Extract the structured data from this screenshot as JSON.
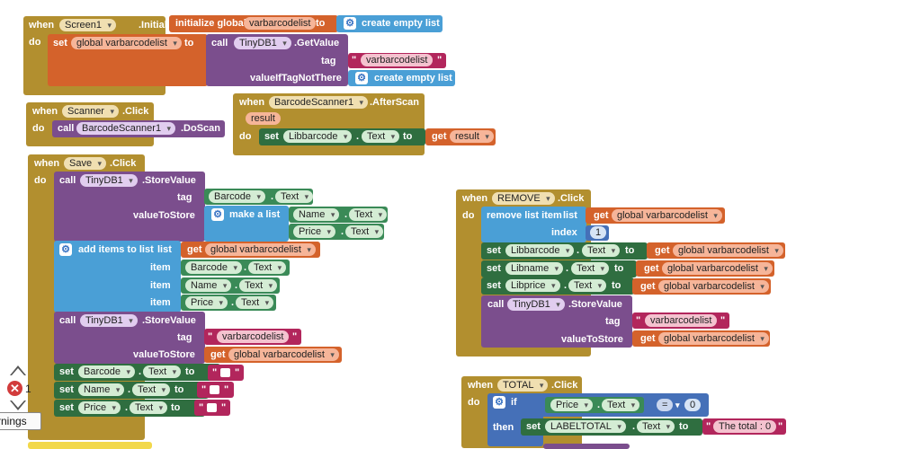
{
  "screen1_init": {
    "when": "when",
    "component": "Screen1",
    "event": ".Initialize",
    "do": "do",
    "set": "set",
    "var": "global varbarcodelist",
    "to": "to",
    "call": "call",
    "db": "TinyDB1",
    "method": ".GetValue",
    "tag": "tag",
    "tag_value": "varbarcodelist",
    "value_if": "valueIfTagNotThere",
    "empty_list": "create empty list"
  },
  "init_global": {
    "label": "initialize global",
    "name": "varbarcodelist",
    "to": "to",
    "empty_list": "create empty list"
  },
  "scanner_click": {
    "when": "when",
    "component": "Scanner",
    "event": ".Click",
    "do": "do",
    "call": "call",
    "target": "BarcodeScanner1",
    "method": ".DoScan"
  },
  "after_scan": {
    "when": "when",
    "component": "BarcodeScanner1",
    "event": ".AfterScan",
    "param": "result",
    "do": "do",
    "set": "set",
    "target": "Libbarcode",
    "prop": "Text",
    "to": "to",
    "get": "get",
    "get_val": "result"
  },
  "save_click": {
    "when": "when",
    "component": "Save",
    "event": ".Click",
    "do": "do",
    "call": "call",
    "db": "TinyDB1",
    "method": ".StoreValue",
    "tag": "tag",
    "value_to_store": "valueToStore",
    "make_list": "make a list",
    "add_items": "add items to list",
    "list": "list",
    "item": "item",
    "get": "get",
    "global": "global varbarcodelist",
    "tag_value": "varbarcodelist",
    "barcode": "Barcode",
    "name": "Name",
    "price": "Price",
    "text": "Text",
    "set": "set",
    "to": "to"
  },
  "remove_click": {
    "when": "when",
    "component": "REMOVE",
    "event": ".Click",
    "do": "do",
    "remove": "remove list item",
    "list": "list",
    "get": "get",
    "global": "global varbarcodelist",
    "index": "index",
    "index_value": "1",
    "set": "set",
    "to": "to",
    "text": "Text",
    "libbarcode": "Libbarcode",
    "libname": "Libname",
    "libprice": "Libprice",
    "call": "call",
    "db": "TinyDB1",
    "method": ".StoreValue",
    "tag": "tag",
    "tag_value": "varbarcodelist",
    "value_to_store": "valueToStore"
  },
  "total_click": {
    "when": "when",
    "component": "TOTAL",
    "event": ".Click",
    "do": "do",
    "if": "if",
    "then": "then",
    "price": "Price",
    "text": "Text",
    "op": "=",
    "zero": "0",
    "set": "set",
    "label": "LABELTOTAL",
    "to": "to",
    "total_text": "The total : 0"
  },
  "warnings": {
    "count": "1",
    "label": "rnings"
  },
  "colors": {
    "event": "#b28f2f",
    "procedure": "#7b4e8d",
    "variable": "#d4622b",
    "list": "#4a9fd6",
    "component": "#2f6e40",
    "text": "#b2265c",
    "control": "#4570b8"
  }
}
